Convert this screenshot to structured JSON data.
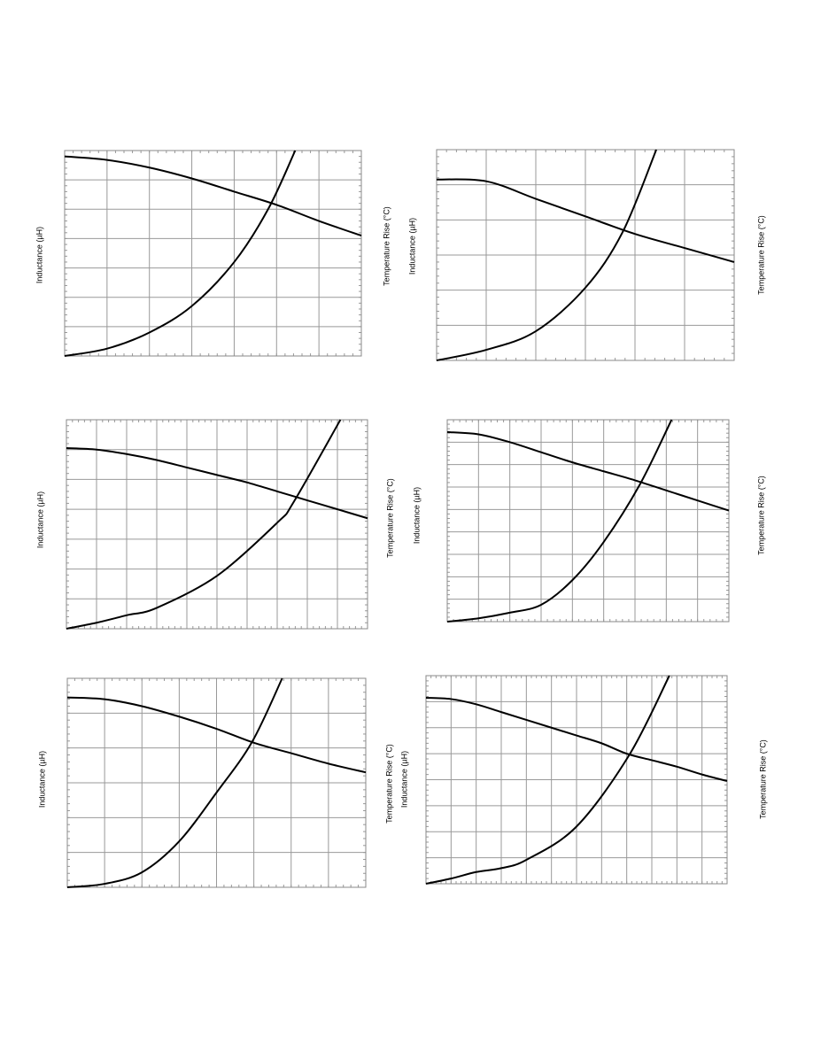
{
  "chart_data": [
    {
      "type": "line",
      "y_label": "Inductance (µH)",
      "y2_label": "Temperature Rise (°C)",
      "grid": true,
      "xlim": [
        0,
        7
      ],
      "ylim": [
        0,
        7
      ],
      "y2lim": [
        0,
        7
      ],
      "series": [
        {
          "color": "#000000",
          "x": [
            0,
            1,
            2,
            3,
            4,
            5,
            6,
            7
          ],
          "values": [
            6.8,
            6.68,
            6.42,
            6.05,
            5.6,
            5.15,
            4.6,
            4.1
          ]
        },
        {
          "color": "#000000",
          "axis": "y2",
          "x": [
            0,
            1,
            2,
            3,
            4,
            4.8,
            5.44
          ],
          "values": [
            0,
            0.25,
            0.8,
            1.7,
            3.2,
            5.0,
            7.0
          ]
        }
      ]
    },
    {
      "type": "line",
      "y_label": "Inductance (µH)",
      "y2_label": "Temperature Rise (°C)",
      "grid": true,
      "xlim": [
        0,
        6
      ],
      "ylim": [
        0,
        6
      ],
      "y2lim": [
        0,
        6
      ],
      "series": [
        {
          "color": "#000000",
          "x": [
            0,
            1,
            2,
            3,
            4,
            5,
            6
          ],
          "values": [
            5.15,
            5.1,
            4.6,
            4.1,
            3.6,
            3.2,
            2.8
          ]
        },
        {
          "color": "#000000",
          "axis": "y2",
          "x": [
            0,
            1,
            2,
            3,
            3.75,
            4.43
          ],
          "values": [
            0,
            0.3,
            0.83,
            2.07,
            3.65,
            6
          ]
        }
      ]
    },
    {
      "type": "line",
      "y_label": "Inductance (µH)",
      "y2_label": "Temperature Rise (°C)",
      "grid": true,
      "xlim": [
        0,
        10
      ],
      "ylim": [
        0,
        7
      ],
      "y2lim": [
        0,
        7
      ],
      "series": [
        {
          "color": "#000000",
          "x": [
            0,
            1,
            2,
            3,
            4,
            5,
            6,
            7,
            8,
            9,
            10
          ],
          "values": [
            6.05,
            6.0,
            5.85,
            5.65,
            5.4,
            5.15,
            4.9,
            4.6,
            4.3,
            4.0,
            3.7
          ]
        },
        {
          "color": "#000000",
          "axis": "y2",
          "x": [
            0,
            1,
            2,
            3,
            5,
            7,
            7.55,
            9.1
          ],
          "values": [
            0,
            0.2,
            0.45,
            0.7,
            1.77,
            3.55,
            4.25,
            7
          ]
        }
      ]
    },
    {
      "type": "line",
      "y_label": "Inductance (µH)",
      "y2_label": "Temperature Rise (°C)",
      "grid": true,
      "xlim": [
        0,
        9
      ],
      "ylim": [
        0,
        9
      ],
      "y2lim": [
        0,
        9
      ],
      "series": [
        {
          "color": "#000000",
          "x": [
            0,
            1,
            2,
            3,
            4,
            5,
            6,
            7,
            8,
            9
          ],
          "values": [
            8.45,
            8.35,
            8.0,
            7.55,
            7.1,
            6.7,
            6.3,
            5.85,
            5.4,
            4.95
          ]
        },
        {
          "color": "#000000",
          "axis": "y2",
          "x": [
            0,
            1,
            2,
            3,
            4,
            5,
            6.15,
            7.17
          ],
          "values": [
            0,
            0.15,
            0.4,
            0.75,
            1.85,
            3.55,
            6.1,
            9
          ]
        }
      ]
    },
    {
      "type": "line",
      "y_label": "Inductance (µH)",
      "y2_label": "Temperature Rise (°C)",
      "grid": true,
      "xlim": [
        0,
        8
      ],
      "ylim": [
        0,
        6
      ],
      "y2lim": [
        0,
        6
      ],
      "series": [
        {
          "color": "#000000",
          "x": [
            0,
            1,
            2,
            3,
            4,
            5,
            6,
            7,
            8
          ],
          "values": [
            5.45,
            5.4,
            5.2,
            4.9,
            4.55,
            4.15,
            3.85,
            3.55,
            3.3
          ]
        },
        {
          "color": "#000000",
          "axis": "y2",
          "x": [
            0,
            1,
            2,
            3,
            4,
            4.95,
            5.76
          ],
          "values": [
            0,
            0.1,
            0.43,
            1.32,
            2.72,
            4.17,
            6
          ]
        }
      ]
    },
    {
      "type": "line",
      "y_label": "Inductance (µH)",
      "y2_label": "Temperature Rise (°C)",
      "grid": true,
      "xlim": [
        0,
        12
      ],
      "ylim": [
        0,
        8
      ],
      "y2lim": [
        0,
        8
      ],
      "series": [
        {
          "color": "#000000",
          "x": [
            0,
            1,
            2,
            3,
            4,
            5,
            6,
            7,
            8,
            9,
            10,
            11,
            12
          ],
          "values": [
            7.15,
            7.1,
            6.9,
            6.6,
            6.3,
            6.0,
            5.7,
            5.4,
            5.0,
            4.75,
            4.5,
            4.2,
            3.95
          ]
        },
        {
          "color": "#000000",
          "axis": "y2",
          "x": [
            0,
            1,
            2,
            3,
            4,
            6,
            8.1,
            9.7
          ],
          "values": [
            0,
            0.2,
            0.45,
            0.6,
            0.92,
            2.2,
            4.95,
            8
          ]
        }
      ]
    }
  ]
}
